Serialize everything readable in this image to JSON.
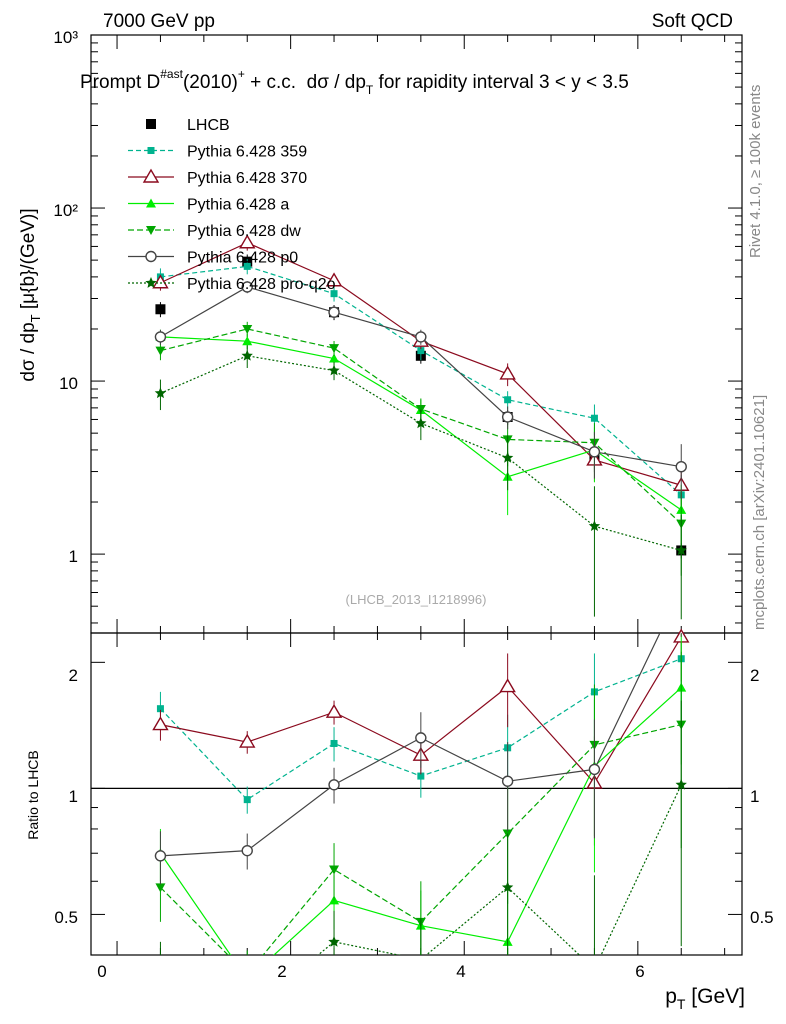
{
  "header": {
    "left": "7000 GeV pp",
    "right": "Soft QCD"
  },
  "side_labels": {
    "rivet": "Rivet 4.1.0, ≥ 100k events",
    "mcplots": "mcplots.cern.ch [arXiv:2401.10621]"
  },
  "chart_data": {
    "type": "line",
    "title_parts": {
      "main": "Prompt D",
      "sup1": "#ast",
      "mid": "(2010)",
      "sup2": "+",
      "rest": " + c.c.  dσ / dp",
      "sub": "T",
      "tail": " for rapidity interval 3 < y < 3.5"
    },
    "watermark": "(LHCB_2013_I1218996)",
    "ylabel_parts": {
      "main": "dσ / dp",
      "sub": "T",
      "tail": " [μ{b}/(GeV)]"
    },
    "ratio_ylabel": "Ratio to LHCB",
    "xlabel_parts": {
      "main": "p",
      "sub": "T",
      "tail": " [GeV]"
    },
    "xlim": [
      -0.3,
      7.2
    ],
    "ylim": [
      0.35,
      1000
    ],
    "yscale": "log",
    "ratio_ylim": [
      0.4,
      2.35
    ],
    "x_ticks": [
      "0",
      "2",
      "4",
      "6"
    ],
    "y_ticks": [
      "1",
      "10",
      "10²",
      "10³"
    ],
    "ratio_ticks": [
      "0.5",
      "1",
      "2"
    ],
    "x": [
      0.5,
      1.5,
      2.5,
      3.5,
      4.5,
      5.5,
      6.5
    ],
    "series": [
      {
        "name": "LHCB",
        "color": "#000000",
        "dash": "",
        "marker": "square-filled",
        "legend": true,
        "values": [
          26,
          49,
          25,
          14,
          6.2,
          3.5,
          1.05
        ],
        "errors": [
          0.1,
          0.1,
          0.1,
          0.1,
          0.1,
          0.15,
          0.1
        ],
        "ratio": null,
        "ratio_errors": null
      },
      {
        "name": "Pythia 6.428 359",
        "color": "#00b38f",
        "dash": "5,3",
        "marker": "square-small",
        "legend": true,
        "values": [
          40,
          46,
          32,
          15,
          7.8,
          6.1,
          2.2
        ],
        "errors": [
          0.12,
          0.1,
          0.1,
          0.12,
          0.12,
          0.2,
          0.3
        ],
        "ratio": [
          1.55,
          0.94,
          1.28,
          1.07,
          1.25,
          1.7,
          2.04
        ],
        "ratio_errors": [
          0.15,
          0.07,
          0.12,
          0.12,
          0.25,
          0.4,
          0.6
        ]
      },
      {
        "name": "Pythia 6.428 370",
        "color": "#8b0a1e",
        "dash": "",
        "marker": "triangle-open",
        "legend": true,
        "values": [
          37,
          63,
          38,
          17,
          11,
          3.5,
          2.5
        ],
        "errors": [
          0.1,
          0.1,
          0.08,
          0.1,
          0.15,
          0.25,
          0.3
        ],
        "ratio": [
          1.42,
          1.29,
          1.52,
          1.2,
          1.75,
          1.03,
          2.3
        ],
        "ratio_errors": [
          0.12,
          0.08,
          0.1,
          0.12,
          0.35,
          0.3,
          0.5
        ]
      },
      {
        "name": "Pythia 6.428 a",
        "color": "#00ee00",
        "dash": "",
        "marker": "triangle-filled",
        "legend": true,
        "values": [
          18,
          17,
          13.5,
          6.8,
          2.8,
          4.0,
          1.8
        ],
        "errors": [
          0.1,
          0.1,
          0.1,
          0.15,
          0.4,
          0.35,
          0.4
        ],
        "ratio": [
          0.7,
          0.35,
          0.54,
          0.47,
          0.43,
          1.13,
          1.74
        ],
        "ratio_errors": [
          0.1,
          0.05,
          0.08,
          0.1,
          0.15,
          0.5,
          0.6
        ]
      },
      {
        "name": "Pythia 6.428 dw",
        "color": "#00a600",
        "dash": "6,3",
        "marker": "triangle-down-filled",
        "legend": true,
        "values": [
          15,
          20,
          15.5,
          6.9,
          4.6,
          4.4,
          1.5
        ],
        "errors": [
          0.12,
          0.1,
          0.1,
          0.15,
          0.3,
          0.3,
          0.5
        ],
        "ratio": [
          0.58,
          0.36,
          0.64,
          0.48,
          0.78,
          1.27,
          1.42
        ],
        "ratio_errors": [
          0.1,
          0.05,
          0.1,
          0.12,
          0.25,
          0.5,
          0.7
        ]
      },
      {
        "name": "Pythia 6.428 p0",
        "color": "#444444",
        "dash": "",
        "marker": "circle-open",
        "legend": true,
        "values": [
          18,
          35,
          25,
          18,
          6.2,
          3.9,
          3.2
        ],
        "errors": [
          0.1,
          0.08,
          0.08,
          0.1,
          0.15,
          0.3,
          0.35
        ],
        "ratio": [
          0.69,
          0.71,
          1.02,
          1.32,
          1.04,
          1.11,
          3.0
        ],
        "ratio_errors": [
          0.1,
          0.07,
          0.1,
          0.2,
          0.25,
          0.35,
          0.7
        ]
      },
      {
        "name": "Pythia 6.428 pro-q2o",
        "color": "#006600",
        "dash": "2,2",
        "marker": "star-filled",
        "legend": true,
        "values": [
          8.5,
          14,
          11.5,
          5.7,
          3.6,
          1.45,
          1.05
        ],
        "errors": [
          0.2,
          0.15,
          0.12,
          0.2,
          0.35,
          0.7,
          0.6
        ],
        "ratio": [
          0.33,
          0.29,
          0.43,
          0.39,
          0.58,
          0.37,
          1.02
        ],
        "ratio_errors": [
          0.1,
          0.05,
          0.08,
          0.1,
          0.2,
          0.25,
          0.6
        ]
      }
    ]
  }
}
